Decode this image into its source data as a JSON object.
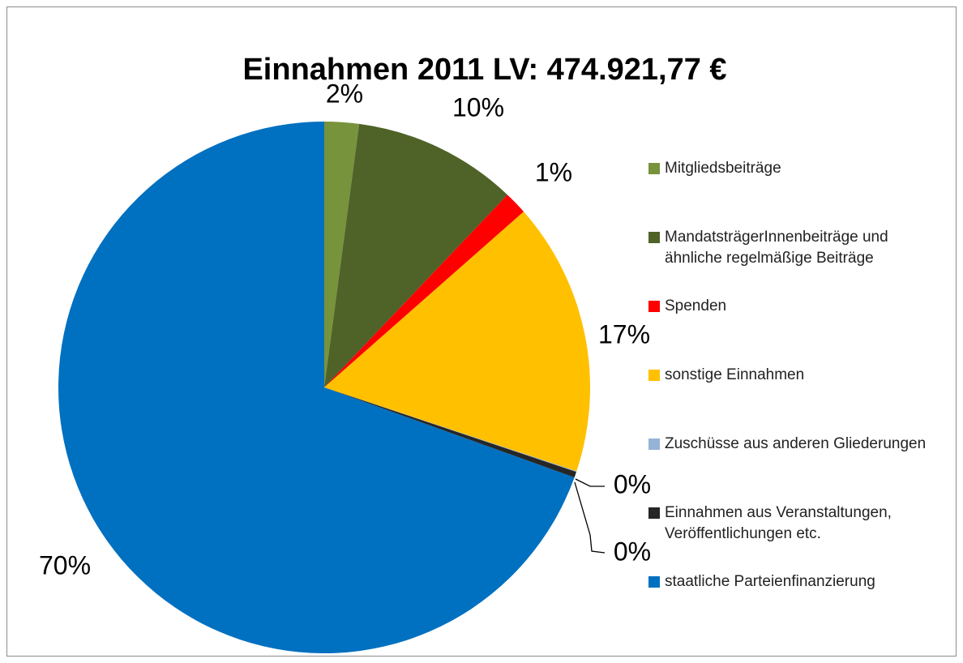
{
  "chart_data": {
    "type": "pie",
    "title": "Einnahmen 2011 LV: 474.921,77 €",
    "categories": [
      "Mitgliedsbeiträge",
      "MandatsträgerInnenbeiträge und ähnliche regelmäßige Beiträge",
      "Spenden",
      "sonstige Einnahmen",
      "Zuschüsse aus anderen Gliederungen",
      "Einnahmen aus Veranstaltungen, Veröffentlichungen etc.",
      "staatliche Parteienfinanzierung"
    ],
    "values": [
      2.1,
      10.0,
      1.4,
      16.6,
      0.05,
      0.35,
      69.5
    ],
    "value_labels": [
      "2%",
      "10%",
      "1%",
      "17%",
      "0%",
      "0%",
      "70%"
    ],
    "colors": [
      "#77933c",
      "#4f6228",
      "#ff0000",
      "#ffc000",
      "#95b3d7",
      "#262626",
      "#0070c0"
    ],
    "legend": "right"
  }
}
